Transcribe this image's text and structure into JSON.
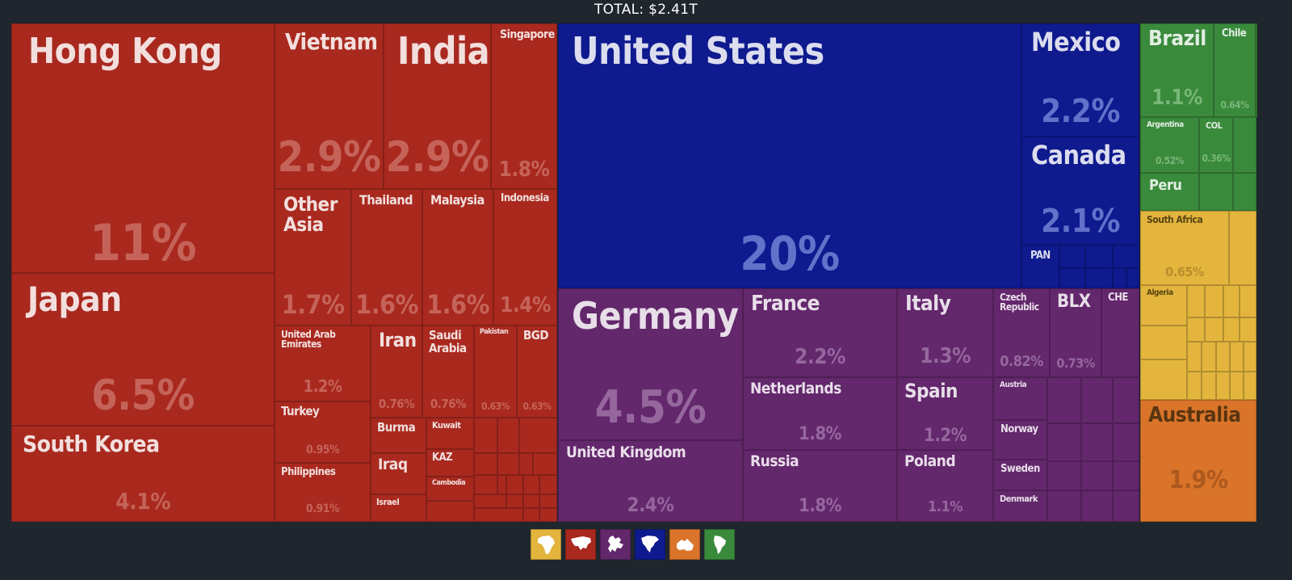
{
  "total_label": "TOTAL: $2.41T",
  "chart_data": {
    "type": "treemap",
    "title": "TOTAL: $2.41T",
    "regions": [
      {
        "name": "Asia",
        "color": "#a9291f",
        "text_color": "#ffffff",
        "pct_color": "#c96a60",
        "icon": "asia-icon"
      },
      {
        "name": "North America",
        "color": "#0e1a8e",
        "text_color": "#ffffff",
        "pct_color": "#6c7bd0",
        "icon": "north-america-icon"
      },
      {
        "name": "Europe",
        "color": "#63276c",
        "text_color": "#ffffff",
        "pct_color": "#9b6ea3",
        "icon": "europe-icon"
      },
      {
        "name": "South America",
        "color": "#3a8a3c",
        "text_color": "#ffffff",
        "pct_color": "#7fbc7f",
        "icon": "south-america-icon"
      },
      {
        "name": "Africa",
        "color": "#e3b53d",
        "text_color": "#5a4512",
        "pct_color": "#b38a2a",
        "icon": "africa-icon"
      },
      {
        "name": "Oceania",
        "color": "#d9742a",
        "text_color": "#5a3510",
        "pct_color": "#a9561c",
        "icon": "oceania-icon"
      }
    ],
    "items": [
      {
        "label": "Hong Kong",
        "pct": "11%",
        "region": "Asia"
      },
      {
        "label": "Japan",
        "pct": "6.5%",
        "region": "Asia"
      },
      {
        "label": "South Korea",
        "pct": "4.1%",
        "region": "Asia"
      },
      {
        "label": "Vietnam",
        "pct": "2.9%",
        "region": "Asia"
      },
      {
        "label": "India",
        "pct": "2.9%",
        "region": "Asia"
      },
      {
        "label": "Singapore",
        "pct": "1.8%",
        "region": "Asia"
      },
      {
        "label": "Other Asia",
        "pct": "1.7%",
        "region": "Asia"
      },
      {
        "label": "Thailand",
        "pct": "1.6%",
        "region": "Asia"
      },
      {
        "label": "Malaysia",
        "pct": "1.6%",
        "region": "Asia"
      },
      {
        "label": "Indonesia",
        "pct": "1.4%",
        "region": "Asia"
      },
      {
        "label": "United Arab Emirates",
        "pct": "1.2%",
        "region": "Asia"
      },
      {
        "label": "Iran",
        "pct": "0.76%",
        "region": "Asia"
      },
      {
        "label": "Saudi Arabia",
        "pct": "0.76%",
        "region": "Asia"
      },
      {
        "label": "Pakistan",
        "pct": "0.63%",
        "region": "Asia"
      },
      {
        "label": "BGD",
        "pct": "0.63%",
        "region": "Asia"
      },
      {
        "label": "Turkey",
        "pct": "0.95%",
        "region": "Asia"
      },
      {
        "label": "Philippines",
        "pct": "0.91%",
        "region": "Asia"
      },
      {
        "label": "Burma",
        "pct": "",
        "region": "Asia"
      },
      {
        "label": "Iraq",
        "pct": "",
        "region": "Asia"
      },
      {
        "label": "Israel",
        "pct": "",
        "region": "Asia"
      },
      {
        "label": "Kuwait",
        "pct": "",
        "region": "Asia"
      },
      {
        "label": "KAZ",
        "pct": "",
        "region": "Asia"
      },
      {
        "label": "Cambodia",
        "pct": "",
        "region": "Asia"
      },
      {
        "label": "United States",
        "pct": "20%",
        "region": "North America"
      },
      {
        "label": "Mexico",
        "pct": "2.2%",
        "region": "North America"
      },
      {
        "label": "Canada",
        "pct": "2.1%",
        "region": "North America"
      },
      {
        "label": "PAN",
        "pct": "",
        "region": "North America"
      },
      {
        "label": "Germany",
        "pct": "4.5%",
        "region": "Europe"
      },
      {
        "label": "United Kingdom",
        "pct": "2.4%",
        "region": "Europe"
      },
      {
        "label": "France",
        "pct": "2.2%",
        "region": "Europe"
      },
      {
        "label": "Netherlands",
        "pct": "1.8%",
        "region": "Europe"
      },
      {
        "label": "Russia",
        "pct": "1.8%",
        "region": "Europe"
      },
      {
        "label": "Italy",
        "pct": "1.3%",
        "region": "Europe"
      },
      {
        "label": "Spain",
        "pct": "1.2%",
        "region": "Europe"
      },
      {
        "label": "Poland",
        "pct": "1.1%",
        "region": "Europe"
      },
      {
        "label": "Czech Republic",
        "pct": "0.82%",
        "region": "Europe"
      },
      {
        "label": "BLX",
        "pct": "0.73%",
        "region": "Europe"
      },
      {
        "label": "CHE",
        "pct": "",
        "region": "Europe"
      },
      {
        "label": "Austria",
        "pct": "",
        "region": "Europe"
      },
      {
        "label": "Norway",
        "pct": "",
        "region": "Europe"
      },
      {
        "label": "Sweden",
        "pct": "",
        "region": "Europe"
      },
      {
        "label": "Denmark",
        "pct": "",
        "region": "Europe"
      },
      {
        "label": "Brazil",
        "pct": "1.1%",
        "region": "South America"
      },
      {
        "label": "Chile",
        "pct": "0.64%",
        "region": "South America"
      },
      {
        "label": "Argentina",
        "pct": "0.52%",
        "region": "South America"
      },
      {
        "label": "COL",
        "pct": "0.36%",
        "region": "South America"
      },
      {
        "label": "Peru",
        "pct": "",
        "region": "South America"
      },
      {
        "label": "South Africa",
        "pct": "0.65%",
        "region": "Africa"
      },
      {
        "label": "Algeria",
        "pct": "",
        "region": "Africa"
      },
      {
        "label": "Australia",
        "pct": "1.9%",
        "region": "Oceania"
      }
    ]
  }
}
